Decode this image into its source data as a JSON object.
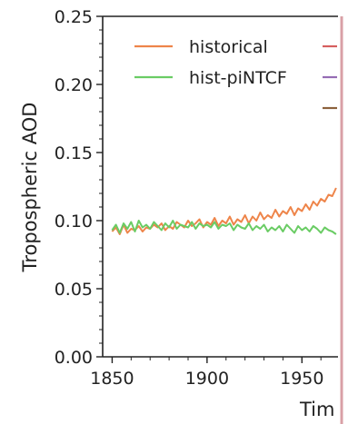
{
  "chart_data": {
    "type": "line",
    "title": "",
    "xlabel": "Tim",
    "ylabel": "Tropospheric AOD",
    "xlim": [
      1845,
      1969
    ],
    "ylim": [
      0.0,
      0.25
    ],
    "x_ticks": [
      "1850",
      "1900",
      "1950"
    ],
    "y_ticks": [
      "0.00",
      "0.05",
      "0.10",
      "0.15",
      "0.20",
      "0.25"
    ],
    "grid": false,
    "legend_position": "top",
    "series": [
      {
        "name": "historical",
        "color": "#ee854a",
        "x": [
          1850,
          1852,
          1854,
          1856,
          1858,
          1860,
          1862,
          1864,
          1866,
          1868,
          1870,
          1872,
          1874,
          1876,
          1878,
          1880,
          1882,
          1884,
          1886,
          1888,
          1890,
          1892,
          1894,
          1896,
          1898,
          1900,
          1902,
          1904,
          1906,
          1908,
          1910,
          1912,
          1914,
          1916,
          1918,
          1920,
          1922,
          1924,
          1926,
          1928,
          1930,
          1932,
          1934,
          1936,
          1938,
          1940,
          1942,
          1944,
          1946,
          1948,
          1950,
          1952,
          1954,
          1956,
          1958,
          1960,
          1962,
          1964,
          1966,
          1968
        ],
        "values": [
          0.092,
          0.095,
          0.09,
          0.097,
          0.091,
          0.094,
          0.093,
          0.096,
          0.092,
          0.095,
          0.094,
          0.097,
          0.095,
          0.098,
          0.093,
          0.096,
          0.094,
          0.099,
          0.097,
          0.095,
          0.1,
          0.096,
          0.098,
          0.101,
          0.095,
          0.099,
          0.097,
          0.102,
          0.096,
          0.1,
          0.098,
          0.103,
          0.097,
          0.101,
          0.099,
          0.104,
          0.098,
          0.103,
          0.1,
          0.106,
          0.101,
          0.104,
          0.102,
          0.108,
          0.103,
          0.107,
          0.105,
          0.11,
          0.104,
          0.109,
          0.107,
          0.112,
          0.108,
          0.114,
          0.111,
          0.116,
          0.114,
          0.119,
          0.118,
          0.124
        ]
      },
      {
        "name": "hist-piNTCF",
        "color": "#6acc64",
        "x": [
          1850,
          1852,
          1854,
          1856,
          1858,
          1860,
          1862,
          1864,
          1866,
          1868,
          1870,
          1872,
          1874,
          1876,
          1878,
          1880,
          1882,
          1884,
          1886,
          1888,
          1890,
          1892,
          1894,
          1896,
          1898,
          1900,
          1902,
          1904,
          1906,
          1908,
          1910,
          1912,
          1914,
          1916,
          1918,
          1920,
          1922,
          1924,
          1926,
          1928,
          1930,
          1932,
          1934,
          1936,
          1938,
          1940,
          1942,
          1944,
          1946,
          1948,
          1950,
          1952,
          1954,
          1956,
          1958,
          1960,
          1962,
          1964,
          1966,
          1968
        ],
        "values": [
          0.093,
          0.097,
          0.091,
          0.098,
          0.094,
          0.099,
          0.092,
          0.1,
          0.095,
          0.097,
          0.094,
          0.099,
          0.096,
          0.093,
          0.098,
          0.095,
          0.1,
          0.094,
          0.097,
          0.096,
          0.095,
          0.099,
          0.094,
          0.098,
          0.096,
          0.097,
          0.095,
          0.099,
          0.094,
          0.097,
          0.096,
          0.098,
          0.093,
          0.097,
          0.095,
          0.094,
          0.098,
          0.093,
          0.096,
          0.094,
          0.097,
          0.092,
          0.095,
          0.093,
          0.096,
          0.092,
          0.097,
          0.094,
          0.091,
          0.096,
          0.093,
          0.095,
          0.092,
          0.096,
          0.094,
          0.091,
          0.095,
          0.093,
          0.092,
          0.09
        ]
      }
    ],
    "partial_legend_marks": [
      "#d65f5f",
      "#956cb4",
      "#8c613c"
    ]
  }
}
